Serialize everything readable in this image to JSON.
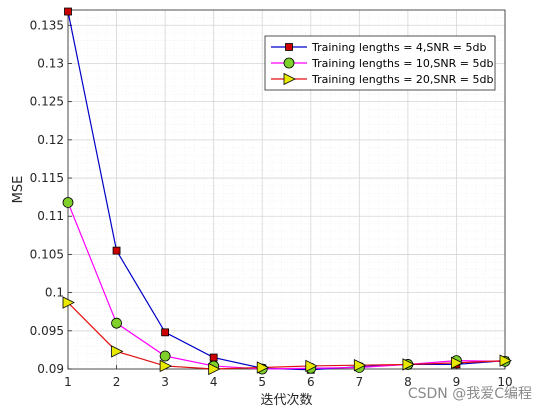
{
  "chart_data": {
    "type": "line",
    "title": "",
    "xlabel": "迭代次数",
    "ylabel": "MSE",
    "xlim": [
      1,
      10
    ],
    "ylim": [
      0.09,
      0.137
    ],
    "x_ticks": [
      1,
      2,
      3,
      4,
      5,
      6,
      7,
      8,
      9,
      10
    ],
    "y_ticks": [
      0.09,
      0.095,
      0.1,
      0.105,
      0.11,
      0.115,
      0.12,
      0.125,
      0.13,
      0.135
    ],
    "y_tick_labels": [
      "0.09",
      "0.095",
      "0.1",
      "0.105",
      "0.11",
      "0.115",
      "0.12",
      "0.125",
      "0.13",
      "0.135"
    ],
    "grid": true,
    "minor_grid": true,
    "legend_position": "top-right",
    "x": [
      1,
      2,
      3,
      4,
      5,
      6,
      7,
      8,
      9,
      10
    ],
    "series": [
      {
        "name": "Training lengths = 4,SNR = 5db",
        "color": "#0000c8",
        "marker": "square",
        "marker_color": "#cc0000",
        "values": [
          0.1368,
          0.1055,
          0.0948,
          0.0915,
          0.0901,
          0.0899,
          0.0903,
          0.0906,
          0.0906,
          0.0911
        ]
      },
      {
        "name": "Training lengths = 10,SNR = 5db",
        "color": "#ff00ff",
        "marker": "circle",
        "marker_color": "#7fd02a",
        "values": [
          0.1118,
          0.096,
          0.0917,
          0.0904,
          0.09,
          0.0901,
          0.0902,
          0.0906,
          0.0911,
          0.091
        ]
      },
      {
        "name": "Training lengths = 20,SNR = 5db",
        "color": "#e01010",
        "marker": "triangle-right",
        "marker_color": "#e8e800",
        "values": [
          0.0987,
          0.0923,
          0.0904,
          0.09,
          0.0902,
          0.0904,
          0.0905,
          0.0906,
          0.0908,
          0.0911
        ]
      }
    ]
  },
  "watermark": "CSDN @我爱C编程"
}
